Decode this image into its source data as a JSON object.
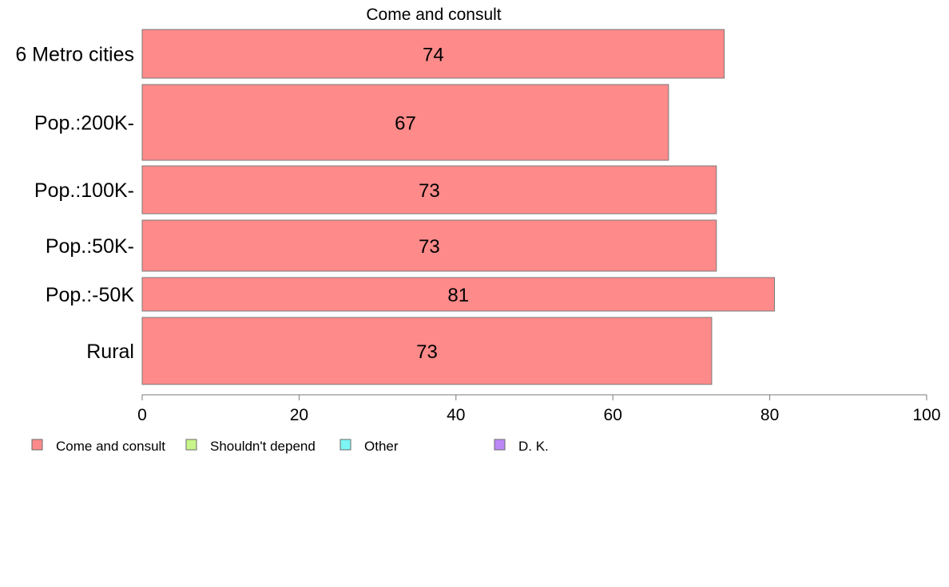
{
  "chart_data": {
    "type": "bar",
    "orientation": "horizontal",
    "title": "Come and consult",
    "categories": [
      "6 Metro cities",
      "Pop.:200K-",
      "Pop.:100K-",
      "Pop.:50K-",
      "Pop.:-50K",
      "Rural"
    ],
    "series": [
      {
        "name": "Come and consult",
        "values": [
          74.2,
          67.1,
          73.2,
          73.2,
          80.6,
          72.6
        ],
        "labels": [
          "74",
          "67",
          "73",
          "73",
          "81",
          "73"
        ],
        "color": "#ff8a8a"
      }
    ],
    "legend": [
      {
        "name": "Come and consult",
        "color": "#ff8a8a"
      },
      {
        "name": "Shouldn't depend",
        "color": "#c8f58a"
      },
      {
        "name": "Other",
        "color": "#7ef5f5"
      },
      {
        "name": "D. K.",
        "color": "#bb88f5"
      }
    ],
    "legend_placement": "bottom-left",
    "xlim": [
      0,
      100
    ],
    "xticks": [
      "0",
      "20",
      "40",
      "60",
      "80",
      "100"
    ],
    "xlabel": "",
    "ylabel": "",
    "grid": false
  }
}
